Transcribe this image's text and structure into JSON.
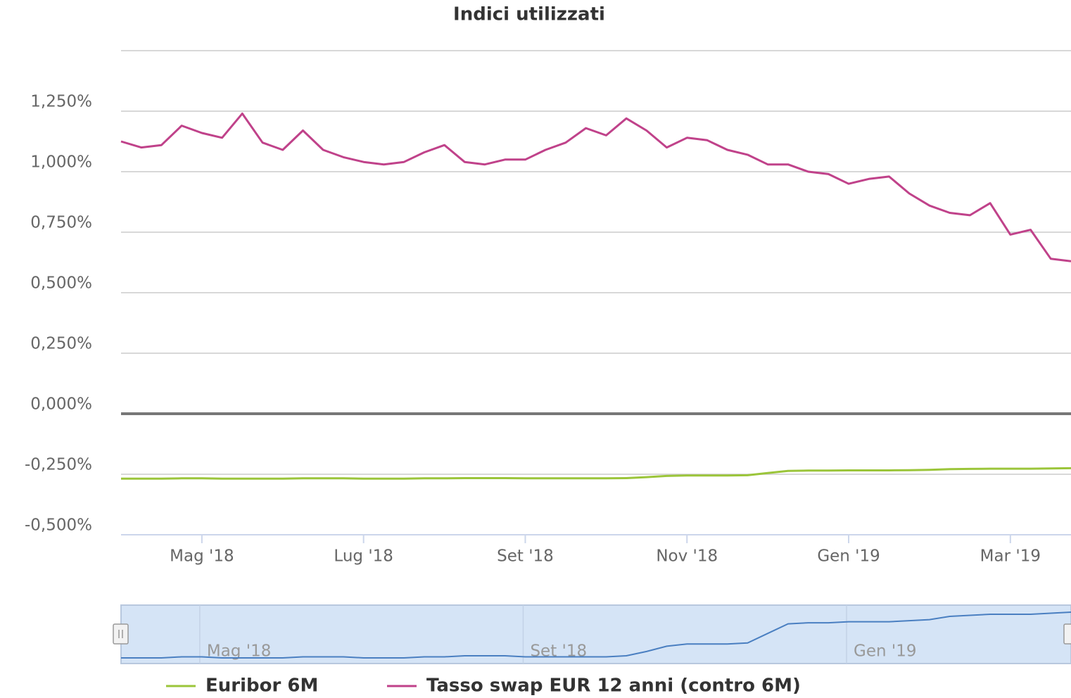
{
  "chart_data": {
    "type": "line",
    "title": "Indici utilizzati",
    "categories": [
      null,
      null,
      null,
      null,
      "Mag '18",
      null,
      null,
      null,
      null,
      null,
      null,
      null,
      "Lug '18",
      null,
      null,
      null,
      null,
      null,
      null,
      null,
      "Set '18",
      null,
      null,
      null,
      null,
      null,
      null,
      null,
      "Nov '18",
      null,
      null,
      null,
      null,
      null,
      null,
      null,
      "Gen '19",
      null,
      null,
      null,
      null,
      null,
      null,
      null,
      "Mar '19",
      null,
      null,
      null
    ],
    "series": [
      {
        "name": "Euribor 6M",
        "color": "#9bc53a",
        "values": [
          -0.268,
          -0.268,
          -0.268,
          -0.267,
          -0.267,
          -0.268,
          -0.268,
          -0.268,
          -0.268,
          -0.267,
          -0.267,
          -0.267,
          -0.268,
          -0.268,
          -0.268,
          -0.267,
          -0.267,
          -0.266,
          -0.266,
          -0.266,
          -0.267,
          -0.267,
          -0.267,
          -0.267,
          -0.267,
          -0.266,
          -0.262,
          -0.257,
          -0.255,
          -0.255,
          -0.255,
          -0.254,
          -0.245,
          -0.236,
          -0.235,
          -0.235,
          -0.234,
          -0.234,
          -0.234,
          -0.233,
          -0.232,
          -0.229,
          -0.228,
          -0.227,
          -0.227,
          -0.227,
          -0.226,
          -0.225
        ]
      },
      {
        "name": "Tasso swap EUR 12 anni (contro 6M)",
        "color": "#c0428a",
        "values": [
          1.125,
          1.1,
          1.11,
          1.19,
          1.16,
          1.14,
          1.24,
          1.12,
          1.09,
          1.17,
          1.09,
          1.06,
          1.04,
          1.03,
          1.04,
          1.08,
          1.11,
          1.04,
          1.03,
          1.05,
          1.05,
          1.09,
          1.12,
          1.18,
          1.15,
          1.22,
          1.17,
          1.1,
          1.14,
          1.13,
          1.09,
          1.07,
          1.03,
          1.03,
          1.0,
          0.99,
          0.95,
          0.97,
          0.98,
          0.91,
          0.86,
          0.83,
          0.82,
          0.87,
          0.74,
          0.76,
          0.64,
          0.63
        ]
      }
    ],
    "ylim": [
      -0.5,
      1.5
    ],
    "yticks": [
      {
        "value": -0.5,
        "label": "-0,500%"
      },
      {
        "value": -0.25,
        "label": "-0,250%"
      },
      {
        "value": 0,
        "label": "0,000%"
      },
      {
        "value": 0.25,
        "label": "0,250%"
      },
      {
        "value": 0.5,
        "label": "0,500%"
      },
      {
        "value": 0.75,
        "label": "0,750%"
      },
      {
        "value": 1,
        "label": "1,000%"
      },
      {
        "value": 1.25,
        "label": "1,250%"
      }
    ],
    "grid": true,
    "legend": "bottom",
    "navigator": {
      "labels": [
        "Mag '18",
        "Set '18",
        "Gen '19"
      ]
    }
  }
}
